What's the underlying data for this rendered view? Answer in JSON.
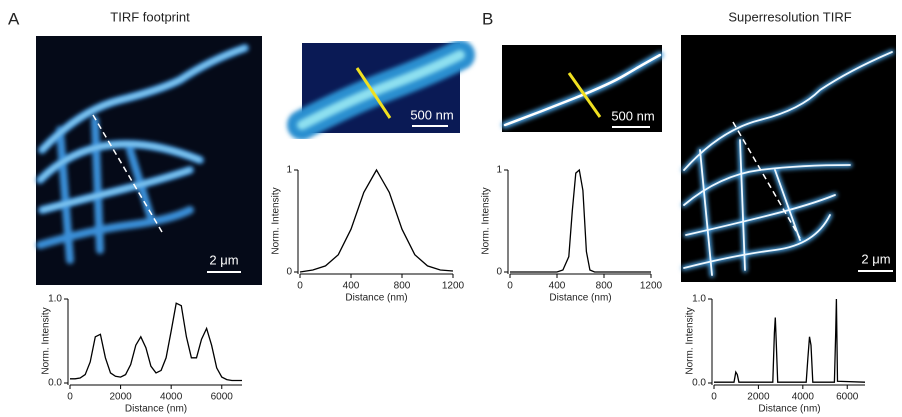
{
  "figure": {
    "panel_a": "A",
    "panel_b": "B",
    "title_a": "TIRF footprint",
    "title_b": "Superresolution TIRF"
  },
  "scale_bars": [
    "2 μm",
    "500 nm",
    "500 nm",
    "2 μm"
  ],
  "chart_data": [
    {
      "type": "line",
      "x_label": "Distance (nm)",
      "y_label": "Norm. Intensity",
      "color": "#000000",
      "x": [
        0,
        200,
        400,
        600,
        800,
        1000,
        1200,
        1400,
        1600,
        1800,
        2000,
        2200,
        2400,
        2600,
        2800,
        3000,
        3200,
        3400,
        3600,
        3800,
        4000,
        4200,
        4400,
        4600,
        4800,
        5000,
        5200,
        5400,
        5600,
        5800,
        6000,
        6200,
        6400,
        6600,
        6800
      ],
      "values": [
        0.05,
        0.05,
        0.06,
        0.1,
        0.25,
        0.55,
        0.58,
        0.3,
        0.12,
        0.08,
        0.07,
        0.1,
        0.22,
        0.45,
        0.55,
        0.42,
        0.2,
        0.12,
        0.15,
        0.3,
        0.62,
        0.95,
        0.92,
        0.55,
        0.3,
        0.3,
        0.52,
        0.65,
        0.45,
        0.18,
        0.07,
        0.04,
        0.03,
        0.03,
        0.03
      ],
      "xlim": [
        0,
        6800
      ],
      "xticks": [
        0,
        2000,
        4000,
        6000
      ],
      "ylim": [
        0,
        1
      ],
      "yticks": [
        {
          "value": 0,
          "label": "0.0"
        },
        {
          "value": 1,
          "label": "1.0"
        }
      ]
    },
    {
      "type": "line",
      "x_label": "Distance (nm)",
      "y_label": "Norm. Intensity",
      "color": "#000000",
      "x": [
        0,
        100,
        200,
        300,
        400,
        500,
        600,
        700,
        800,
        900,
        1000,
        1100,
        1200
      ],
      "values": [
        0,
        0.02,
        0.06,
        0.17,
        0.42,
        0.78,
        1.0,
        0.78,
        0.42,
        0.17,
        0.06,
        0.02,
        0.01
      ],
      "xlim": [
        0,
        1200
      ],
      "xticks": [
        0,
        400,
        800,
        1200
      ],
      "ylim": [
        0,
        1
      ],
      "yticks": [
        0,
        1
      ]
    },
    {
      "type": "line",
      "x_label": "Distance (nm)",
      "y_label": "Norm. Intensity",
      "color": "#000000",
      "x": [
        0,
        400,
        450,
        500,
        530,
        560,
        590,
        620,
        650,
        680,
        720,
        1200
      ],
      "values": [
        0,
        0,
        0.02,
        0.15,
        0.6,
        0.97,
        1.0,
        0.8,
        0.2,
        0.02,
        0,
        0
      ],
      "xlim": [
        0,
        1200
      ],
      "xticks": [
        0,
        400,
        800,
        1200
      ],
      "ylim": [
        0,
        1
      ],
      "yticks": [
        0,
        1
      ]
    },
    {
      "type": "line",
      "x_label": "Distance (nm)",
      "y_label": "Norm. Intensity",
      "color": "#000000",
      "x": [
        0,
        900,
        980,
        1050,
        1120,
        2650,
        2720,
        2760,
        2800,
        2870,
        4150,
        4230,
        4300,
        4370,
        4450,
        5420,
        5480,
        5510,
        5560,
        6800
      ],
      "values": [
        0.01,
        0.01,
        0.13,
        0.1,
        0.01,
        0.01,
        0.6,
        0.78,
        0.5,
        0.01,
        0.01,
        0.3,
        0.55,
        0.45,
        0.01,
        0.01,
        0.6,
        1.0,
        0.02,
        0.01
      ],
      "xlim": [
        0,
        6800
      ],
      "xticks": [
        0,
        2000,
        4000,
        6000
      ],
      "ylim": [
        0,
        1
      ],
      "yticks": [
        {
          "value": 0,
          "label": "0.0"
        },
        {
          "value": 1,
          "label": "1.0"
        }
      ]
    }
  ]
}
